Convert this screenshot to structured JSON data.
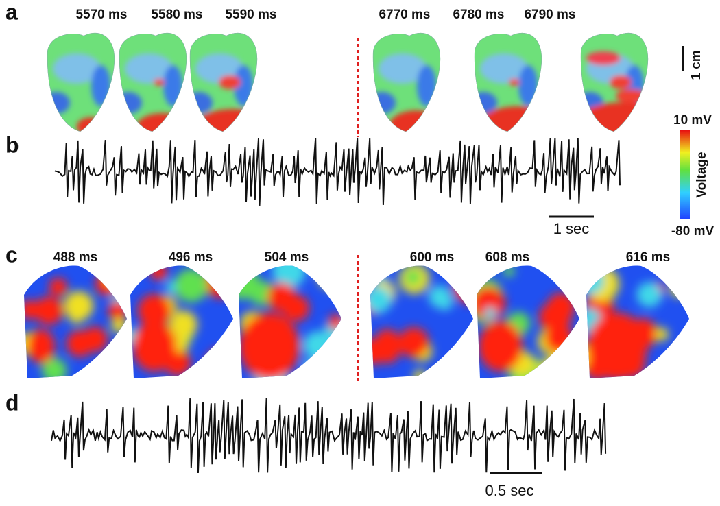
{
  "panel_a": {
    "label": "a",
    "frames": [
      "5570 ms",
      "5580 ms",
      "5590 ms",
      "6770 ms",
      "6780 ms",
      "6790 ms"
    ],
    "scale_bar": "1 cm"
  },
  "panel_b": {
    "label": "b",
    "scale_bar": "1 sec"
  },
  "colorbar": {
    "max": "10 mV",
    "title": "Voltage",
    "min": "-80 mV"
  },
  "panel_c": {
    "label": "c",
    "frames": [
      "488 ms",
      "496 ms",
      "504 ms",
      "600 ms",
      "608 ms",
      "616 ms"
    ]
  },
  "panel_d": {
    "label": "d",
    "scale_bar": "0.5 sec"
  }
}
